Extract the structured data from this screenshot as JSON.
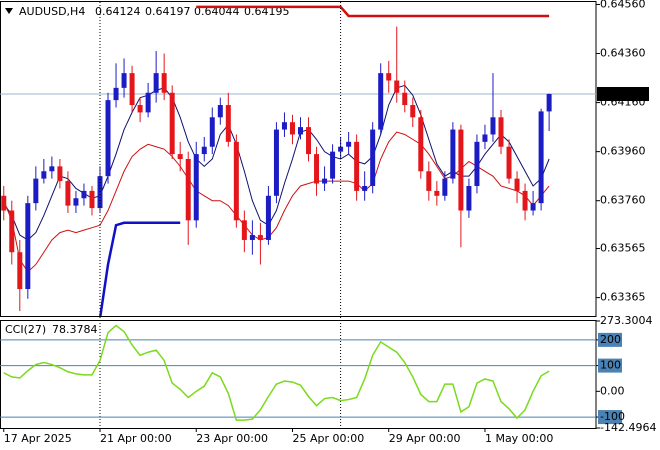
{
  "chart_data": [
    {
      "type": "candlestick",
      "title": "AUDUSD,H4",
      "categories": [
        "17 Apr 2025",
        null,
        null,
        null,
        null,
        null,
        null,
        null,
        null,
        null,
        null,
        null,
        "21 Apr 00:00",
        null,
        null,
        null,
        null,
        null,
        null,
        null,
        null,
        null,
        null,
        null,
        "23 Apr 00:00",
        null,
        null,
        null,
        null,
        null,
        null,
        null,
        null,
        null,
        null,
        null,
        "25 Apr 00:00",
        null,
        null,
        null,
        null,
        null,
        null,
        null,
        null,
        null,
        null,
        null,
        "29 Apr 00:00",
        null,
        null,
        null,
        null,
        null,
        null,
        null,
        null,
        null,
        null,
        null,
        "1 May 00:00",
        null,
        null,
        null,
        null,
        null,
        null,
        null,
        null
      ],
      "open": [
        0.6378,
        0.6372,
        0.6355,
        0.634,
        0.6375,
        0.6385,
        0.6388,
        0.639,
        0.6384,
        0.6374,
        0.6377,
        0.638,
        0.6373,
        0.6386,
        0.6417,
        0.6422,
        0.6428,
        0.6415,
        0.6412,
        0.642,
        0.6428,
        0.642,
        0.6395,
        0.6393,
        0.6368,
        0.6395,
        0.6398,
        0.641,
        0.6415,
        0.64,
        0.6368,
        0.636,
        0.6362,
        0.636,
        0.6378,
        0.6405,
        0.6408,
        0.6403,
        0.6406,
        0.6395,
        0.6383,
        0.6385,
        0.6396,
        0.6398,
        0.64,
        0.638,
        0.6382,
        0.6405,
        0.6428,
        0.6425,
        0.642,
        0.6415,
        0.641,
        0.6388,
        0.638,
        0.6378,
        0.6385,
        0.6405,
        0.6372,
        0.6382,
        0.64,
        0.6403,
        0.641,
        0.6398,
        0.6385,
        0.638,
        0.6372,
        0.6375,
        0.64124
      ],
      "high": [
        0.6382,
        0.6376,
        0.636,
        0.6378,
        0.639,
        0.6393,
        0.6394,
        0.6393,
        0.6388,
        0.638,
        0.6383,
        0.6382,
        0.639,
        0.642,
        0.6432,
        0.6434,
        0.6431,
        0.6418,
        0.6424,
        0.6437,
        0.6436,
        0.6423,
        0.64,
        0.6396,
        0.64,
        0.6402,
        0.6414,
        0.6418,
        0.642,
        0.6403,
        0.6372,
        0.6368,
        0.6367,
        0.6382,
        0.6408,
        0.6412,
        0.6411,
        0.641,
        0.641,
        0.6398,
        0.639,
        0.6399,
        0.6402,
        0.6404,
        0.6403,
        0.6388,
        0.6408,
        0.6432,
        0.6433,
        0.6447,
        0.6425,
        0.6418,
        0.6413,
        0.6392,
        0.6384,
        0.6388,
        0.6408,
        0.6407,
        0.6385,
        0.6403,
        0.6407,
        0.6428,
        0.6413,
        0.6401,
        0.6388,
        0.6383,
        0.638,
        0.64135,
        0.64197
      ],
      "low": [
        0.6368,
        0.635,
        0.6331,
        0.6336,
        0.6372,
        0.6383,
        0.6385,
        0.6381,
        0.6371,
        0.6371,
        0.6374,
        0.637,
        0.6371,
        0.6383,
        0.6414,
        0.6418,
        0.6412,
        0.6408,
        0.641,
        0.6416,
        0.6417,
        0.6393,
        0.6388,
        0.6358,
        0.6365,
        0.6392,
        0.6395,
        0.6407,
        0.6398,
        0.6365,
        0.6355,
        0.6354,
        0.635,
        0.6358,
        0.6375,
        0.6402,
        0.6399,
        0.6401,
        0.6392,
        0.6378,
        0.638,
        0.6383,
        0.6393,
        0.6395,
        0.6376,
        0.6376,
        0.6379,
        0.6403,
        0.642,
        0.6416,
        0.6412,
        0.6406,
        0.6385,
        0.6376,
        0.6374,
        0.6376,
        0.6383,
        0.6357,
        0.6369,
        0.6379,
        0.6397,
        0.64,
        0.6395,
        0.6383,
        0.6375,
        0.6368,
        0.637,
        0.6372,
        0.64044
      ],
      "close": [
        0.6372,
        0.6355,
        0.634,
        0.6375,
        0.6385,
        0.6388,
        0.639,
        0.6384,
        0.6374,
        0.6377,
        0.638,
        0.6373,
        0.6386,
        0.6417,
        0.6422,
        0.6428,
        0.6415,
        0.6412,
        0.642,
        0.6428,
        0.642,
        0.6395,
        0.6393,
        0.6368,
        0.6395,
        0.6398,
        0.641,
        0.6415,
        0.64,
        0.6368,
        0.636,
        0.6362,
        0.636,
        0.6378,
        0.6405,
        0.6408,
        0.6403,
        0.6406,
        0.6395,
        0.6383,
        0.6385,
        0.6396,
        0.6398,
        0.64,
        0.638,
        0.6382,
        0.6405,
        0.6428,
        0.6425,
        0.642,
        0.6415,
        0.641,
        0.6388,
        0.638,
        0.6378,
        0.6385,
        0.6405,
        0.6372,
        0.6382,
        0.64,
        0.6403,
        0.641,
        0.6398,
        0.6385,
        0.638,
        0.6372,
        0.6375,
        0.64124,
        0.64195
      ],
      "up_color": "#1c1cc4",
      "down_color": "#e3161b",
      "series": [
        {
          "color": "#10106e",
          "width": 1,
          "values": [
            0.6375,
            0.637,
            0.6362,
            0.636,
            0.6363,
            0.637,
            0.6378,
            0.6386,
            0.6385,
            0.6381,
            0.6379,
            0.6377,
            0.6378,
            0.6386,
            0.6395,
            0.6405,
            0.6412,
            0.6418,
            0.6419,
            0.6421,
            0.6422,
            0.6418,
            0.641,
            0.64,
            0.6393,
            0.639,
            0.6393,
            0.6403,
            0.6407,
            0.6399,
            0.6388,
            0.6376,
            0.6368,
            0.6366,
            0.6372,
            0.6383,
            0.6393,
            0.6404,
            0.6405,
            0.6401,
            0.6396,
            0.6394,
            0.6393,
            0.6395,
            0.6392,
            0.6391,
            0.6394,
            0.6403,
            0.6415,
            0.6422,
            0.6423,
            0.6419,
            0.6411,
            0.6401,
            0.6391,
            0.6386,
            0.6388,
            0.6386,
            0.6386,
            0.639,
            0.6395,
            0.6399,
            0.6403,
            0.64,
            0.6394,
            0.6388,
            0.6382,
            0.6385,
            0.6393
          ]
        },
        {
          "color": "#d01010",
          "width": 1,
          "values": [
            0.6376,
            0.6368,
            0.6352,
            0.6347,
            0.635,
            0.6355,
            0.636,
            0.6363,
            0.6364,
            0.6363,
            0.6364,
            0.6365,
            0.6366,
            0.6372,
            0.638,
            0.6388,
            0.6394,
            0.6397,
            0.6399,
            0.6398,
            0.6397,
            0.6394,
            0.639,
            0.6385,
            0.638,
            0.6378,
            0.6376,
            0.6376,
            0.6374,
            0.637,
            0.6366,
            0.6362,
            0.636,
            0.6361,
            0.6365,
            0.6372,
            0.6378,
            0.6382,
            0.6383,
            0.6384,
            0.6384,
            0.6384,
            0.6384,
            0.6384,
            0.6383,
            0.638,
            0.6383,
            0.6393,
            0.64,
            0.6404,
            0.6403,
            0.6401,
            0.6399,
            0.6395,
            0.639,
            0.6385,
            0.6386,
            0.6389,
            0.6392,
            0.639,
            0.6388,
            0.6386,
            0.6382,
            0.6381,
            0.638,
            0.6378,
            0.6374,
            0.6378,
            0.6382
          ]
        },
        {
          "color": "#1010c8",
          "width": 2.5,
          "values": [
            null,
            null,
            null,
            null,
            null,
            null,
            null,
            null,
            null,
            null,
            null,
            null,
            0.6328,
            0.635,
            0.6366,
            0.6367,
            0.6367,
            0.6367,
            0.6367,
            0.6367,
            0.6367,
            0.6367,
            0.6367,
            null,
            null,
            null,
            null,
            null,
            null,
            null,
            null,
            null,
            null,
            null,
            null,
            null,
            null,
            null,
            null,
            null,
            null,
            null,
            null,
            null,
            null,
            null,
            null,
            null,
            null,
            null,
            null,
            null,
            null,
            null,
            null,
            null,
            null,
            null,
            null,
            null,
            null,
            null,
            null,
            null,
            null,
            null,
            null,
            null,
            null
          ]
        },
        {
          "color": "#d01010",
          "width": 2.5,
          "values": [
            null,
            null,
            null,
            null,
            null,
            null,
            null,
            null,
            null,
            null,
            null,
            null,
            null,
            null,
            null,
            null,
            null,
            null,
            null,
            null,
            null,
            null,
            null,
            null,
            0.6455,
            0.6455,
            0.6455,
            0.6455,
            0.6455,
            0.6455,
            0.6455,
            0.6455,
            0.6455,
            0.6455,
            0.6455,
            0.6455,
            0.6455,
            0.6455,
            0.6455,
            0.6455,
            0.6455,
            0.6455,
            0.6455,
            0.64513,
            0.64513,
            0.64513,
            0.64513,
            0.64513,
            0.64513,
            0.64513,
            0.64513,
            0.64513,
            0.64513,
            0.64513,
            0.64513,
            0.64513,
            0.64513,
            0.64513,
            0.64513,
            0.64513,
            0.64513,
            0.64513,
            0.64513,
            0.64513,
            0.64513,
            0.64513,
            0.64513,
            0.64513,
            0.64513
          ]
        }
      ],
      "ylim": [
        0.6329,
        0.6457
      ],
      "yticks": [
        {
          "value": 0.6456,
          "label": "0.64560"
        },
        {
          "value": 0.6436,
          "label": "0.64360"
        },
        {
          "value": 0.6416,
          "label": "0.64160"
        },
        {
          "value": 0.6396,
          "label": "0.63960"
        },
        {
          "value": 0.6376,
          "label": "0.63760"
        },
        0.63565,
        0.63365
      ]
    },
    {
      "type": "line",
      "title": "CCI(27)",
      "series": [
        {
          "color": "#7ada1c",
          "values": [
            72,
            56,
            52,
            80,
            104,
            112,
            104,
            92,
            76,
            68,
            64,
            64,
            120,
            228,
            256,
            232,
            180,
            140,
            152,
            160,
            120,
            32,
            8,
            -24,
            0,
            20,
            72,
            56,
            -8,
            -112,
            -112,
            -108,
            -72,
            -20,
            28,
            40,
            36,
            24,
            -20,
            -56,
            -28,
            -24,
            -36,
            -32,
            -24,
            48,
            140,
            192,
            172,
            152,
            112,
            56,
            -12,
            -40,
            -40,
            28,
            28,
            -80,
            -60,
            32,
            48,
            40,
            -40,
            -68,
            -104,
            -72,
            0,
            60,
            78.3784
          ]
        }
      ],
      "ylim": [
        -142.4964,
        273.3004
      ],
      "yticks": [
        273.3004,
        200,
        100,
        {
          "value": 0,
          "label": "0.00"
        },
        -100,
        -142.4964
      ],
      "levels": [
        200,
        100,
        -100
      ]
    }
  ]
}
